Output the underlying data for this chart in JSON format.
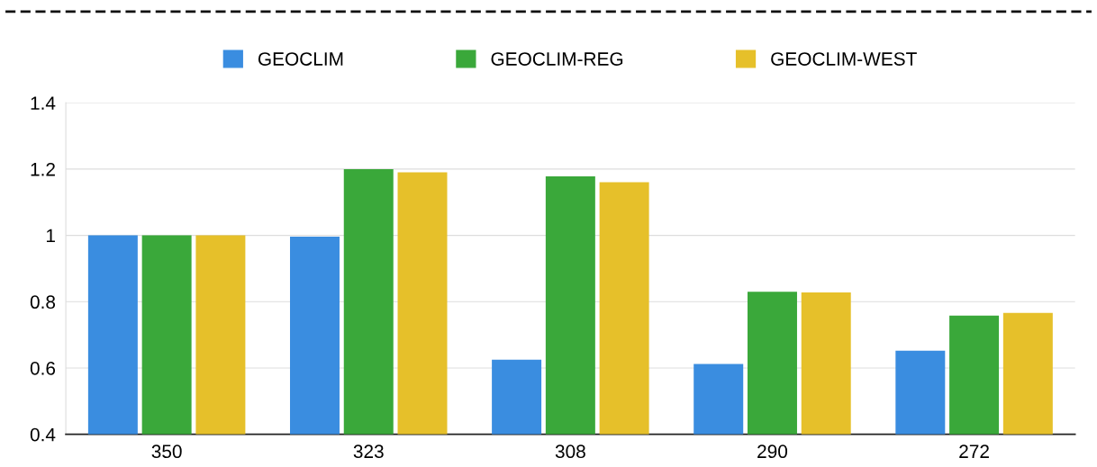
{
  "chart_data": {
    "type": "bar",
    "categories": [
      "350",
      "323",
      "308",
      "290",
      "272"
    ],
    "series": [
      {
        "name": "GEOCLIM",
        "color": "#3a8de0",
        "values": [
          1.0,
          0.996,
          0.625,
          0.612,
          0.652
        ]
      },
      {
        "name": "GEOCLIM-REG",
        "color": "#3aa83a",
        "values": [
          1.0,
          1.2,
          1.178,
          0.83,
          0.758
        ]
      },
      {
        "name": "GEOCLIM-WEST",
        "color": "#e6c02a",
        "values": [
          1.0,
          1.19,
          1.16,
          0.828,
          0.766
        ]
      }
    ],
    "ylim": [
      0.4,
      1.4
    ],
    "yticks": [
      0.4,
      0.6,
      0.8,
      1,
      1.2,
      1.4
    ],
    "grid": "y",
    "legend": "top"
  }
}
